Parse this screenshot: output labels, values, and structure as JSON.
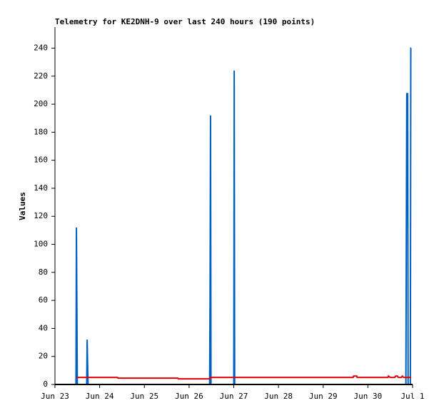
{
  "chart_data": {
    "type": "line",
    "title": "Telemetry for KE2DNH-9 over last 240 hours (190 points)",
    "y_label": "Values",
    "xlim": [
      23,
      31
    ],
    "xticks": [
      {
        "value": 23,
        "label": "Jun 23"
      },
      {
        "value": 24,
        "label": "Jun 24"
      },
      {
        "value": 25,
        "label": "Jun 25"
      },
      {
        "value": 26,
        "label": "Jun 26"
      },
      {
        "value": 27,
        "label": "Jun 27"
      },
      {
        "value": 28,
        "label": "Jun 28"
      },
      {
        "value": 29,
        "label": "Jun 29"
      },
      {
        "value": 30,
        "label": "Jun 30"
      },
      {
        "value": 31,
        "label": "Jul 1"
      }
    ],
    "ylim": [
      0,
      255
    ],
    "yticks": [
      0,
      20,
      40,
      60,
      80,
      100,
      120,
      140,
      160,
      180,
      200,
      220,
      240
    ],
    "grid": false,
    "series": [
      {
        "color": "#0060c0",
        "x": [
          23.47,
          23.48,
          23.49,
          23.5,
          23.71,
          23.72,
          23.73,
          23.74,
          26.46,
          26.47,
          26.48,
          26.49,
          27.0,
          27.01,
          27.02,
          30.85,
          30.86,
          30.87,
          30.88,
          30.89,
          30.9,
          30.95,
          30.96,
          30.97
        ],
        "values": [
          0,
          112,
          56,
          0,
          0,
          32,
          16,
          0,
          0,
          64,
          192,
          0,
          0,
          224,
          0,
          0,
          104,
          208,
          182,
          208,
          0,
          0,
          240,
          240
        ]
      },
      {
        "color": "#e00000",
        "x": [
          23.48,
          24.4,
          24.41,
          25.75,
          25.76,
          26.46,
          26.47,
          29.67,
          29.68,
          29.75,
          29.76,
          30.45,
          30.46,
          30.5,
          30.6,
          30.62,
          30.66,
          30.68,
          30.75,
          30.77,
          30.8,
          30.97
        ],
        "values": [
          5,
          5,
          4.5,
          4.5,
          4,
          4,
          5,
          5,
          6,
          6,
          5,
          5,
          6,
          5,
          5,
          6,
          6,
          5,
          5,
          6,
          5,
          5
        ]
      }
    ]
  }
}
